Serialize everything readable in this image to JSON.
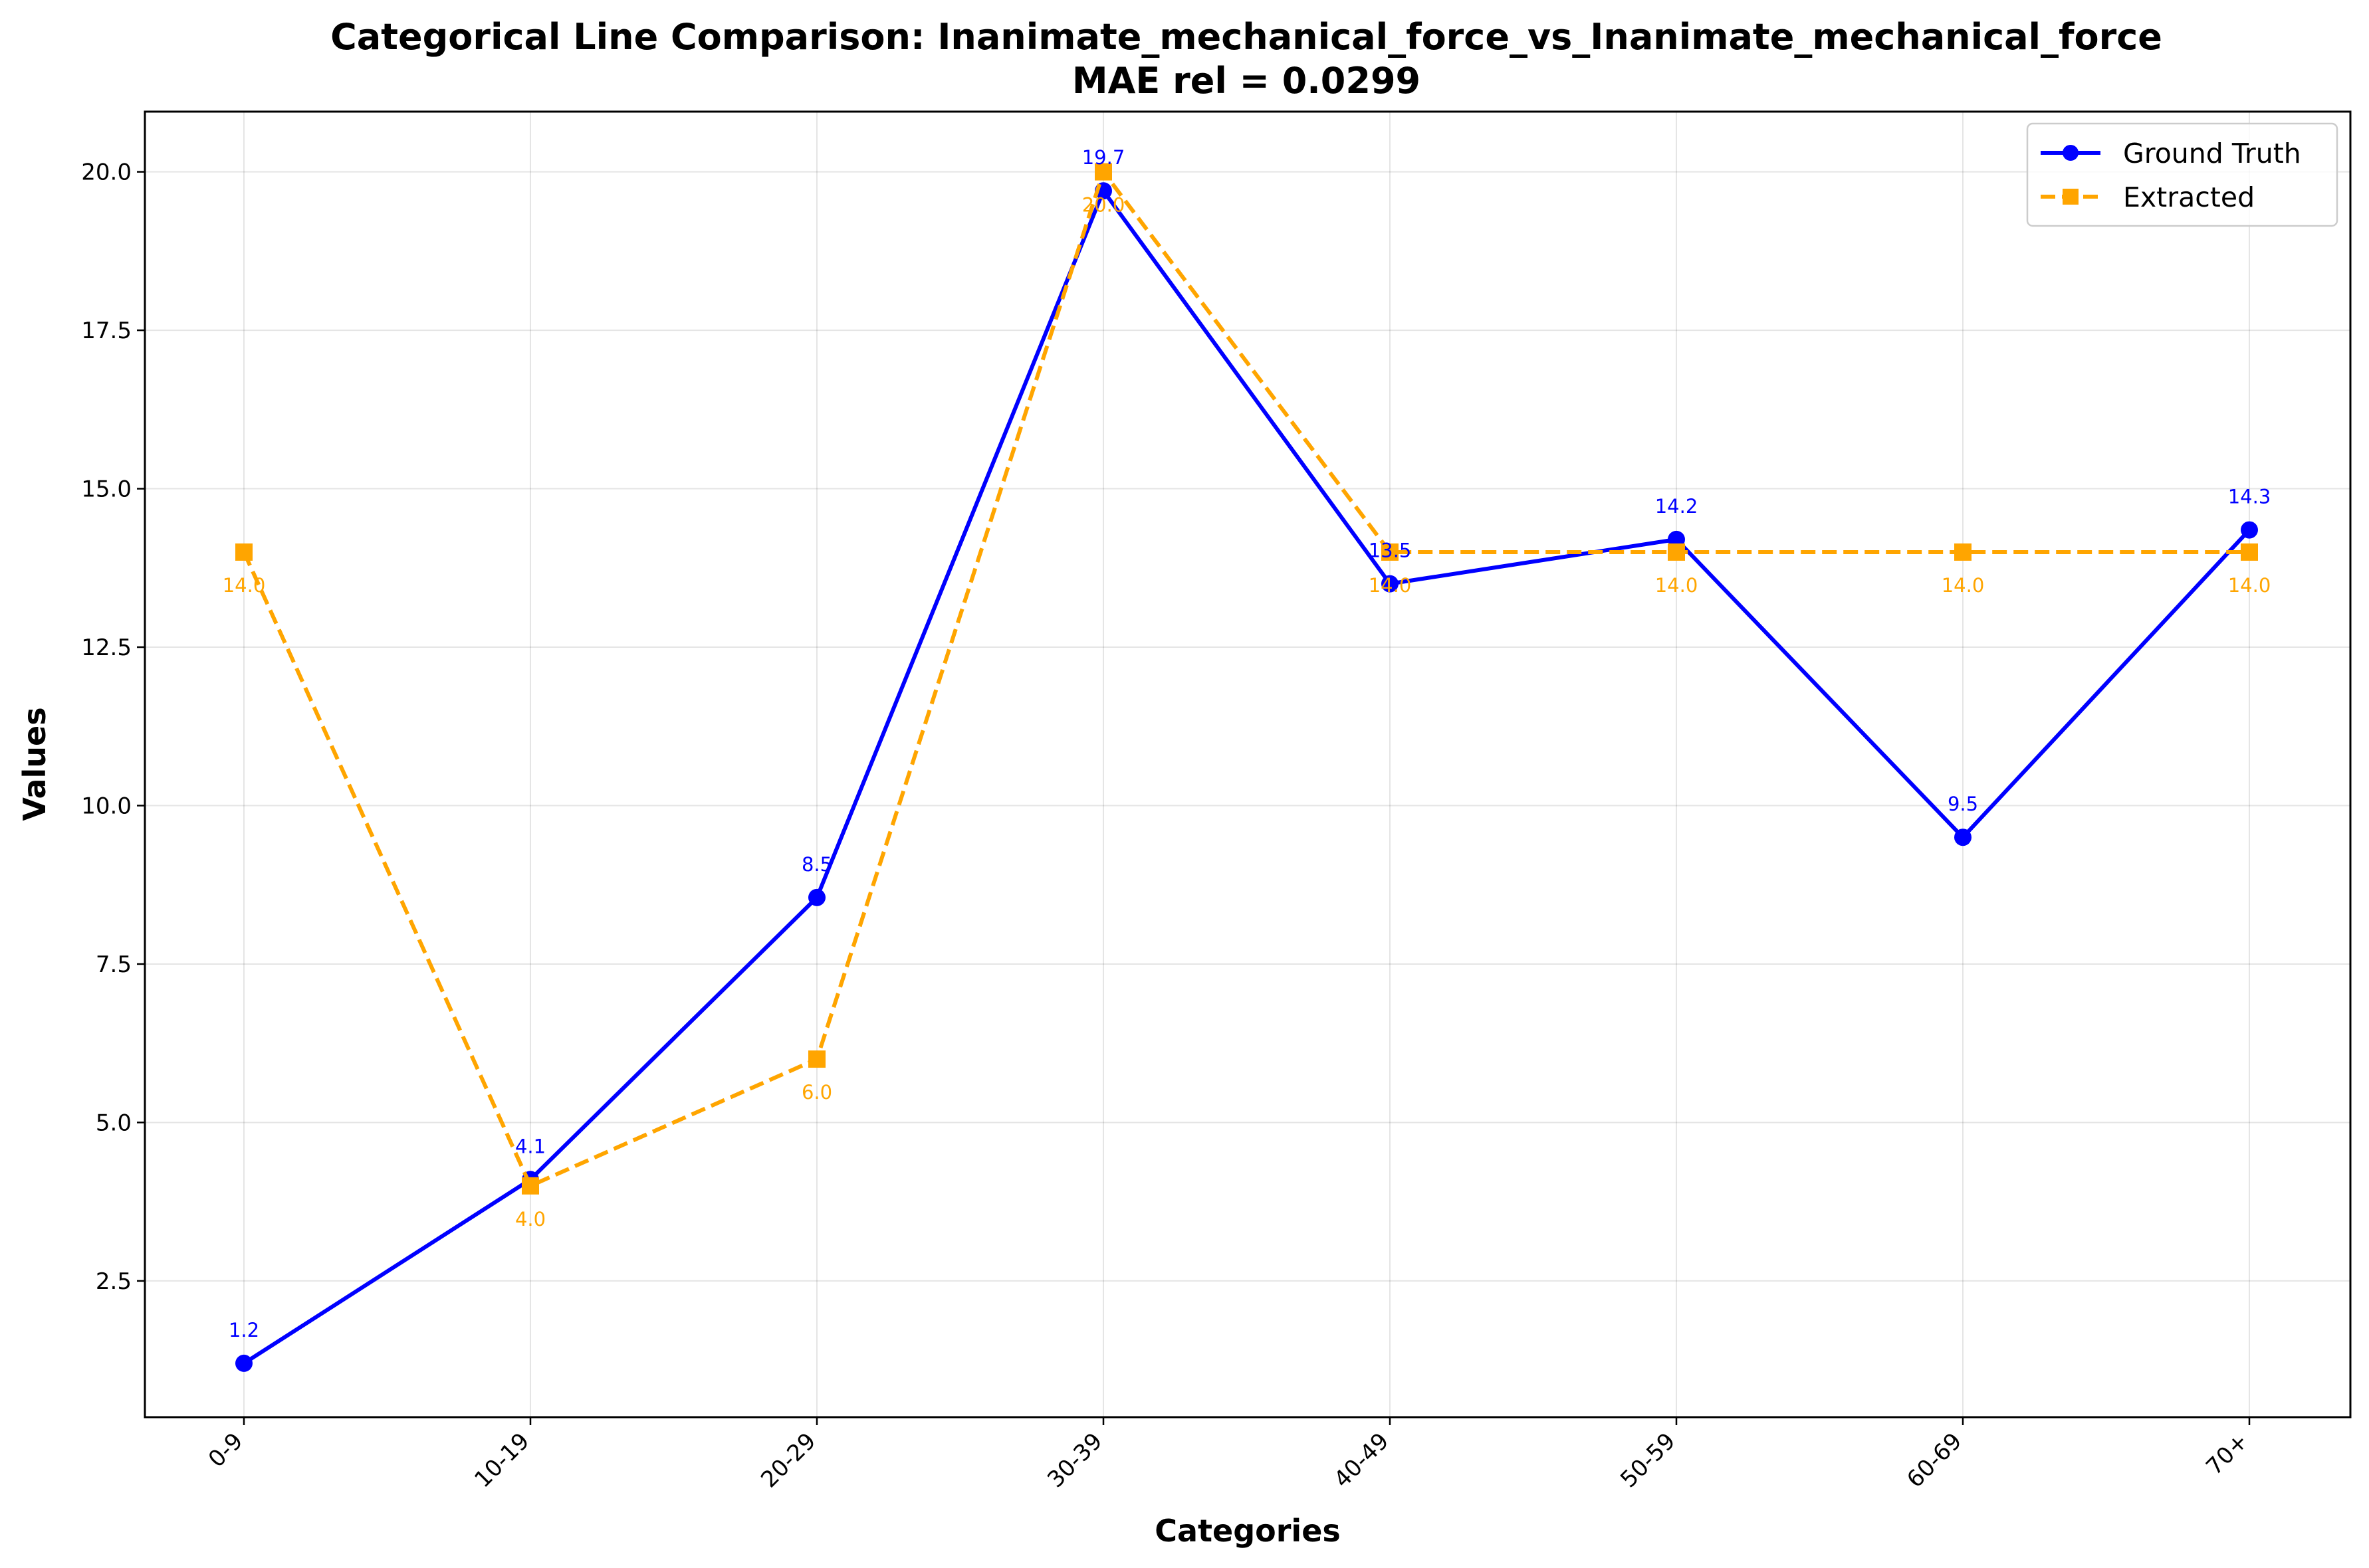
{
  "chart_data": {
    "type": "line",
    "title": "Categorical Line Comparison: Inanimate_mechanical_force_vs_Inanimate_mechanical_force",
    "subtitle": "MAE rel = 0.0299",
    "xlabel": "Categories",
    "ylabel": "Values",
    "categories": [
      "0-9",
      "10-19",
      "20-29",
      "30-39",
      "40-49",
      "50-59",
      "60-69",
      "70+"
    ],
    "ylim": [
      0.35,
      20.95
    ],
    "yticks": [
      "2.5",
      "5.0",
      "7.5",
      "10.0",
      "12.5",
      "15.0",
      "17.5",
      "20.0"
    ],
    "grid": true,
    "legend_position": "top-right",
    "series": [
      {
        "name": "Ground Truth",
        "color": "#0000ff",
        "style": "solid",
        "marker": "circle",
        "values": [
          1.2,
          4.1,
          8.55,
          19.7,
          13.5,
          14.2,
          9.5,
          14.35
        ],
        "labels": [
          "1.2",
          "4.1",
          "8.5",
          "19.7",
          "13.5",
          "14.2",
          "9.5",
          "14.3"
        ]
      },
      {
        "name": "Extracted",
        "color": "#ffa500",
        "style": "dashed",
        "marker": "square",
        "values": [
          14.0,
          4.0,
          6.0,
          20.0,
          14.0,
          14.0,
          14.0,
          14.0
        ],
        "labels": [
          "14.0",
          "4.0",
          "6.0",
          "20.0",
          "14.0",
          "14.0",
          "14.0",
          "14.0"
        ]
      }
    ]
  }
}
